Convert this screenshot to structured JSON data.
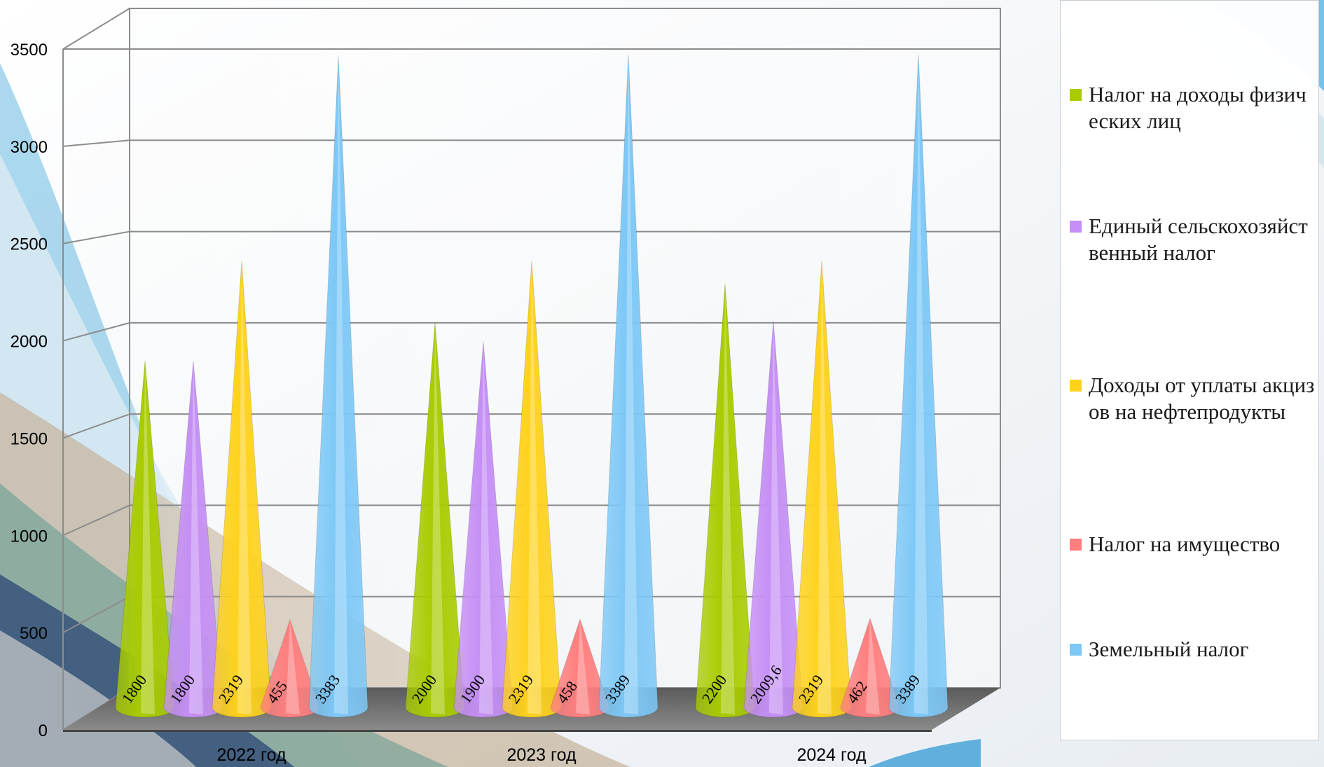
{
  "chart_data": {
    "type": "bar",
    "bar_shape": "cone",
    "categories": [
      "2022 год",
      "2023 год",
      "2024 год"
    ],
    "series": [
      {
        "name": "Налог на доходы физических лиц",
        "color": "#a8cc00",
        "values": [
          1800,
          2000,
          2200
        ],
        "labels": [
          "1800",
          "2000",
          "2200"
        ]
      },
      {
        "name": "Единый сельскохозяйственный налог",
        "color": "#c58ff5",
        "values": [
          1800,
          1900,
          2009.6
        ],
        "labels": [
          "1800",
          "1900",
          "2009,6"
        ]
      },
      {
        "name": "Доходы от уплаты акцизов на нефтепродукты",
        "color": "#ffd21c",
        "values": [
          2319,
          2319,
          2319
        ],
        "labels": [
          "2319",
          "2319",
          "2319"
        ]
      },
      {
        "name": "Налог на имущество",
        "color": "#ff7f7f",
        "values": [
          455,
          458,
          462
        ],
        "labels": [
          "455",
          "458",
          "462"
        ]
      },
      {
        "name": "Земельный налог",
        "color": "#7dc8f7",
        "values": [
          3383,
          3389,
          3389
        ],
        "labels": [
          "3383",
          "3389",
          "3389"
        ]
      }
    ],
    "yticks": [
      "0",
      "500",
      "1000",
      "1500",
      "2000",
      "2500",
      "3000",
      "3500"
    ],
    "ylim": [
      0,
      3500
    ],
    "grid": true,
    "legend": "right"
  }
}
